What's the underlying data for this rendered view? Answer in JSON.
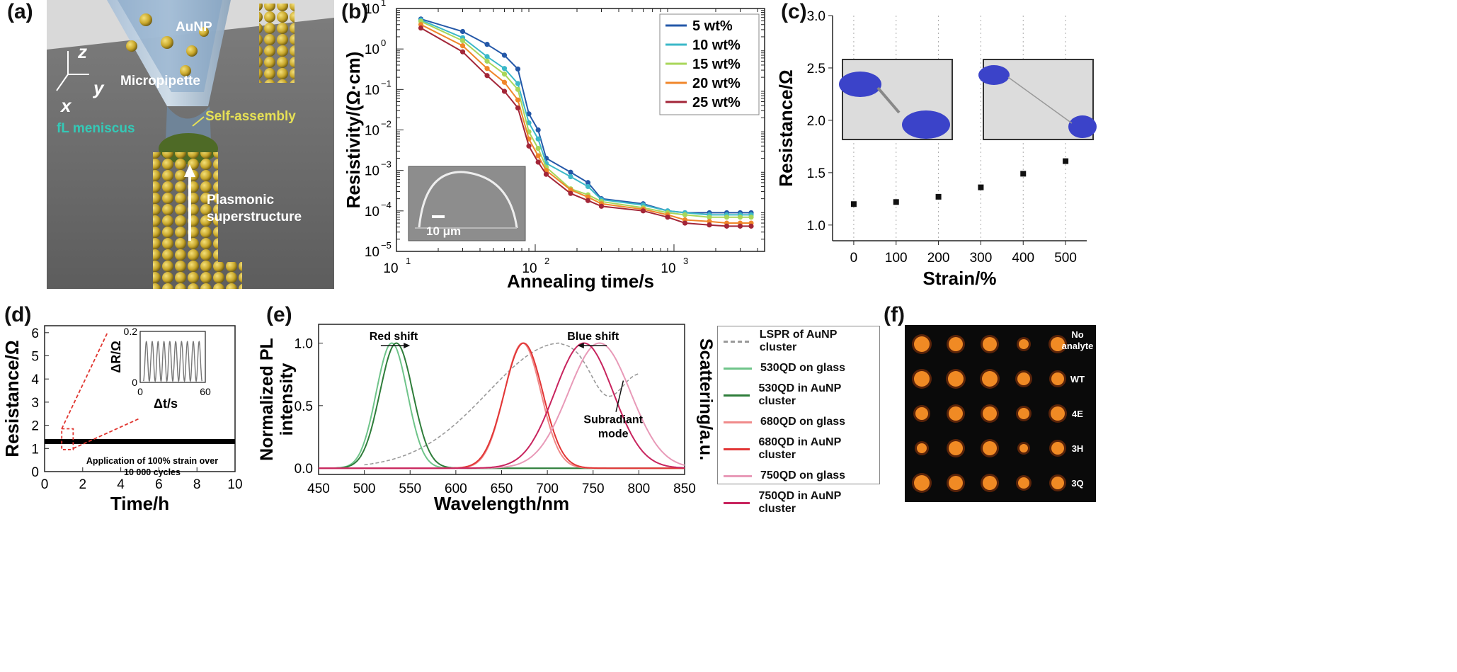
{
  "panels": {
    "a": {
      "label": "(a)",
      "labels": {
        "z": "z",
        "y": "y",
        "x": "x",
        "aunp": "AuNP",
        "micropipette": "Micropipette",
        "meniscus": "fL meniscus",
        "selfassembly": "Self-assembly",
        "plasmonic1": "Plasmonic",
        "plasmonic2": "superstructure"
      }
    },
    "b": {
      "label": "(b)",
      "inset_scale": "10 μm"
    },
    "c": {
      "label": "(c)"
    },
    "d": {
      "label": "(d)",
      "annotation1": "Application of 100% strain over",
      "annotation2": "10 000 cycles"
    },
    "e": {
      "label": "(e)",
      "red_shift": "Red shift",
      "blue_shift": "Blue shift",
      "subradiant1": "Subradiant",
      "subradiant2": "mode"
    },
    "f": {
      "label": "(f)",
      "rows": [
        "No analyte",
        "WT",
        "4E",
        "3H",
        "3Q"
      ],
      "colors": {
        "background": "#0a0a0a",
        "spot": "#f08a24"
      }
    }
  },
  "chart_data": [
    {
      "panel": "b",
      "type": "line",
      "xlabel": "Annealing time/s",
      "ylabel": "Resistivity/(Ω·cm)",
      "xscale": "log",
      "yscale": "log",
      "xlim": [
        10,
        4500
      ],
      "ylim": [
        1e-05,
        10
      ],
      "xticks": [
        {
          "v": 10,
          "b": "10",
          "e": "1"
        },
        {
          "v": 100,
          "b": "10",
          "e": "2"
        },
        {
          "v": 1000,
          "b": "10",
          "e": "3"
        }
      ],
      "yticks": [
        {
          "v": 1e-05,
          "b": "10",
          "e": "−5"
        },
        {
          "v": 0.0001,
          "b": "10",
          "e": "−4"
        },
        {
          "v": 0.001,
          "b": "10",
          "e": "−3"
        },
        {
          "v": 0.01,
          "b": "10",
          "e": "−2"
        },
        {
          "v": 0.1,
          "b": "10",
          "e": "−1"
        },
        {
          "v": 1,
          "b": "10",
          "e": "0"
        },
        {
          "v": 10,
          "b": "10",
          "e": "1"
        }
      ],
      "legend_position": "top-right",
      "x": [
        15,
        30,
        45,
        60,
        75,
        90,
        105,
        120,
        180,
        240,
        300,
        600,
        900,
        1200,
        1800,
        2400,
        3000,
        3600
      ],
      "series": [
        {
          "name": "5 wt%",
          "color": "#2458a8",
          "values": [
            5.5,
            2.7,
            1.3,
            0.7,
            0.32,
            0.025,
            0.01,
            0.002,
            0.0009,
            0.0005,
            0.0002,
            0.00015,
            0.0001,
            9e-05,
            9e-05,
            9e-05,
            9e-05,
            9e-05
          ]
        },
        {
          "name": "10 wt%",
          "color": "#3bb8c8",
          "values": [
            5.2,
            1.9,
            0.65,
            0.33,
            0.14,
            0.015,
            0.006,
            0.0015,
            0.0007,
            0.0004,
            0.00019,
            0.00014,
            0.0001,
            9e-05,
            8e-05,
            8e-05,
            8e-05,
            8e-05
          ]
        },
        {
          "name": "15 wt%",
          "color": "#a8d65a",
          "values": [
            4.8,
            1.6,
            0.5,
            0.24,
            0.1,
            0.009,
            0.0035,
            0.0012,
            0.00035,
            0.00025,
            0.00017,
            0.00012,
            9e-05,
            8e-05,
            7e-05,
            7e-05,
            7e-05,
            7e-05
          ]
        },
        {
          "name": "20 wt%",
          "color": "#f0862a",
          "values": [
            4.0,
            1.2,
            0.33,
            0.15,
            0.055,
            0.006,
            0.0023,
            0.001,
            0.00033,
            0.00022,
            0.00015,
            0.00011,
            8e-05,
            6e-05,
            5.5e-05,
            5e-05,
            5e-05,
            5e-05
          ]
        },
        {
          "name": "25 wt%",
          "color": "#a32638",
          "values": [
            3.3,
            0.85,
            0.22,
            0.09,
            0.035,
            0.004,
            0.0016,
            0.0008,
            0.00027,
            0.00018,
            0.00013,
            0.0001,
            7e-05,
            5e-05,
            4.5e-05,
            4.2e-05,
            4.2e-05,
            4.2e-05
          ]
        }
      ]
    },
    {
      "panel": "c",
      "type": "scatter",
      "xlabel": "Strain/%",
      "ylabel": "Resistance/Ω",
      "xlim": [
        -50,
        550
      ],
      "ylim": [
        0.85,
        3.0
      ],
      "xticks": [
        0,
        100,
        200,
        300,
        400,
        500
      ],
      "yticks": [
        1.0,
        1.5,
        2.0,
        2.5,
        3.0
      ],
      "ytick_labels": [
        "1.0",
        "1.5",
        "2.0",
        "2.5",
        "3.0"
      ],
      "grid": "vertical dotted",
      "x": [
        0,
        100,
        200,
        300,
        400,
        500
      ],
      "values": [
        1.2,
        1.22,
        1.27,
        1.36,
        1.49,
        1.61
      ]
    },
    {
      "panel": "d",
      "type": "line",
      "xlabel": "Time/h",
      "ylabel": "Resistance/Ω",
      "xlim": [
        0,
        10
      ],
      "ylim": [
        0,
        6.3
      ],
      "xticks": [
        0,
        2,
        4,
        6,
        8,
        10
      ],
      "yticks": [
        0,
        1,
        2,
        3,
        4,
        5,
        6
      ],
      "x": [
        0,
        10
      ],
      "values": [
        1.3,
        1.3
      ],
      "inset": {
        "xlabel": "Δt/s",
        "ylabel": "ΔR/Ω",
        "xlim": [
          0,
          60
        ],
        "ylim": [
          0,
          0.2
        ],
        "xticks": [
          0,
          60
        ],
        "yticks": [
          0,
          0.2
        ],
        "ytick_labels": [
          "0",
          "0.2"
        ],
        "cycles": 10,
        "amplitude_min": 0.005,
        "amplitude_max": 0.16
      }
    },
    {
      "panel": "e",
      "type": "line",
      "xlabel": "Wavelength/nm",
      "ylabel": "Normalized PL intensity",
      "ylabel_right": "Scattering/a.u.",
      "xlim": [
        450,
        850
      ],
      "ylim": [
        -0.05,
        1.15
      ],
      "xticks": [
        450,
        500,
        550,
        600,
        650,
        700,
        750,
        800,
        850
      ],
      "yticks": [
        0.0,
        0.5,
        1.0
      ],
      "ytick_labels": [
        "0.0",
        "0.5",
        "1.0"
      ],
      "legend_position": "right outside",
      "series": [
        {
          "name": "LSPR of AuNP cluster",
          "color": "#9a9a9a",
          "dashed": true,
          "peak": 715,
          "width": 80,
          "range": [
            500,
            800
          ]
        },
        {
          "name": "530QD on glass",
          "color": "#6fc48a",
          "peak": 530,
          "width": 17
        },
        {
          "name": "530QD in AuNP cluster",
          "color": "#2e7d3a",
          "peak": 535,
          "width": 18
        },
        {
          "name": "680QD on glass",
          "color": "#f08a8a",
          "peak": 673,
          "width": 20
        },
        {
          "name": "680QD in AuNP cluster",
          "color": "#e23636",
          "peak": 674,
          "width": 21
        },
        {
          "name": "750QD on glass",
          "color": "#e89ab8",
          "peak": 757,
          "width": 34
        },
        {
          "name": "750QD in AuNP cluster",
          "color": "#c8245e",
          "peak": 740,
          "width": 32
        }
      ]
    }
  ]
}
